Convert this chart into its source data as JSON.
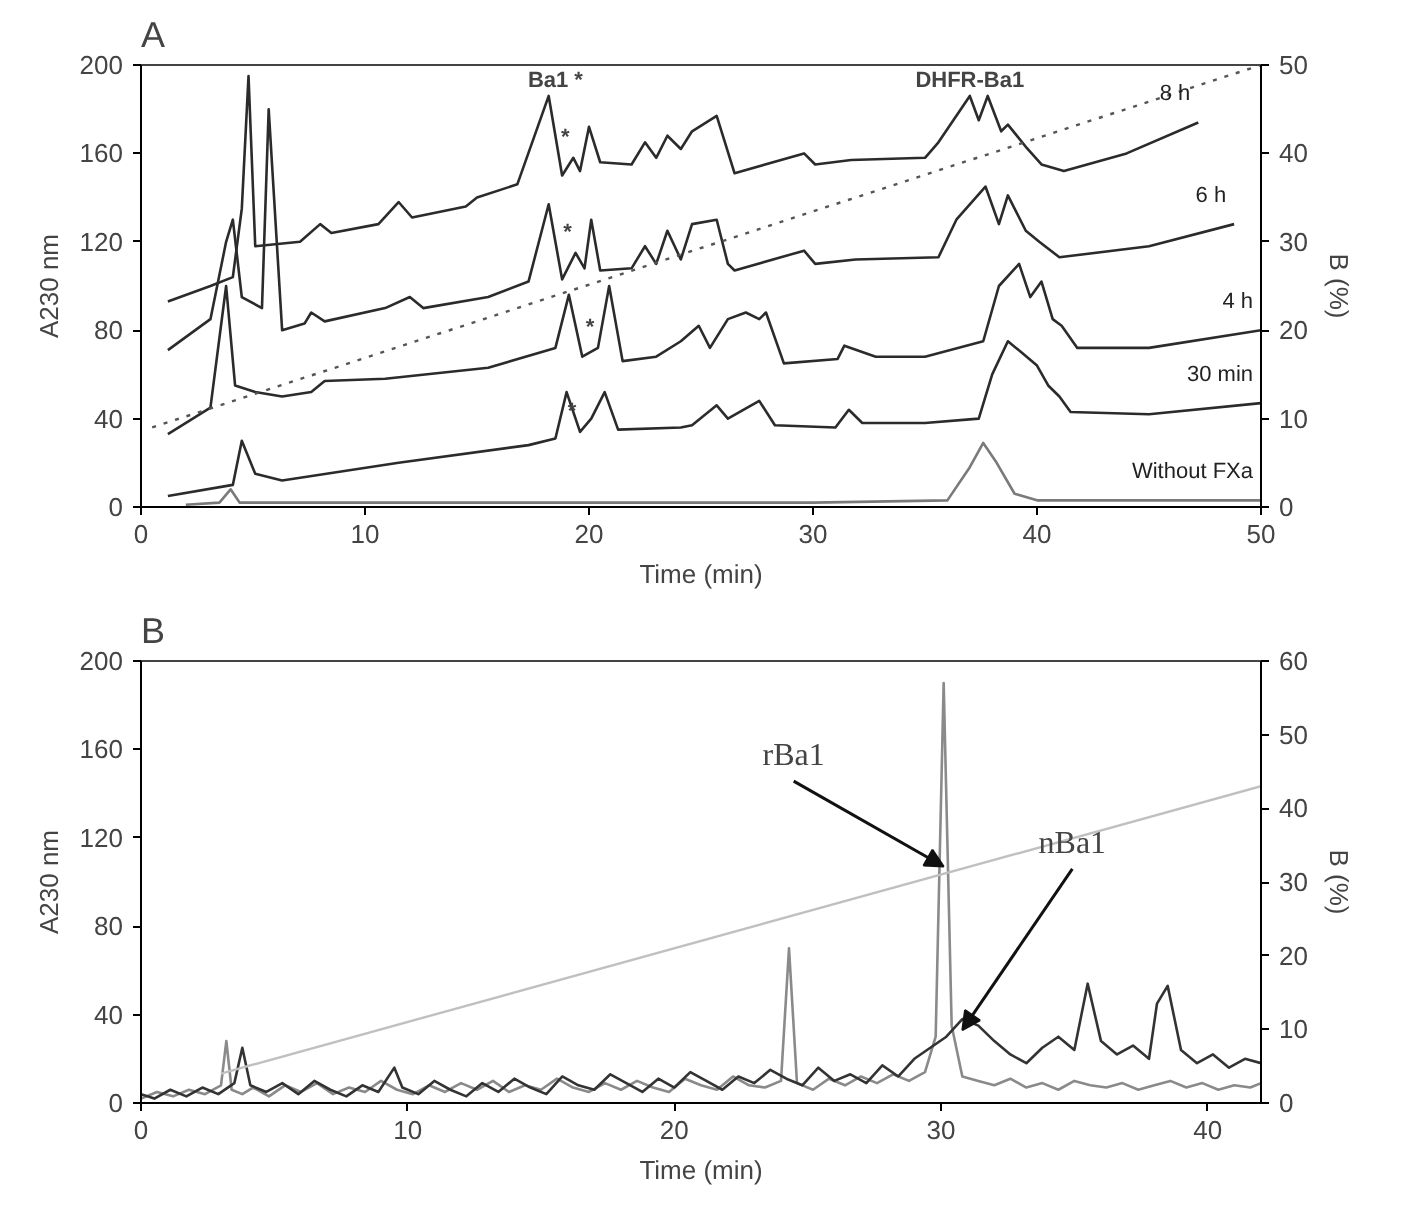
{
  "chart_data": [
    {
      "type": "line",
      "title": "A",
      "xlabel": "Time (min)",
      "ylabel": "A230 nm",
      "y2label": "B (%)",
      "xlim": [
        0,
        50
      ],
      "xticks": [
        0,
        10,
        20,
        30,
        40,
        50
      ],
      "ylim": [
        0,
        200
      ],
      "yticks": [
        0,
        40,
        80,
        120,
        160,
        200
      ],
      "y2lim": [
        0,
        50
      ],
      "y2ticks": [
        0,
        10,
        20,
        30,
        40,
        50
      ],
      "grid": false,
      "legend": false,
      "series": [
        {
          "name": "8 h",
          "color": "#2b2b2b",
          "x": [
            1.2,
            3.1,
            4.1,
            4.5,
            4.8,
            5.1,
            7.1,
            8.0,
            8.5,
            10.6,
            11.5,
            12.1,
            14.5,
            15.0,
            16.8,
            18.2,
            18.8,
            19.3,
            19.6,
            20.0,
            20.5,
            21.9,
            22.5,
            23.0,
            23.5,
            24.1,
            24.6,
            25.7,
            26.5,
            29.6,
            30.1,
            31.7,
            35.0,
            35.6,
            37.0,
            37.4,
            37.8,
            38.4,
            38.7,
            39.5,
            40.2,
            41.2,
            44.0,
            47.2
          ],
          "values": [
            93,
            100,
            104,
            135,
            195,
            118,
            120,
            128,
            124,
            128,
            138,
            131,
            136,
            140,
            146,
            186,
            150,
            158,
            152,
            172,
            156,
            155,
            165,
            158,
            168,
            162,
            170,
            177,
            151,
            160,
            155,
            157,
            158,
            165,
            186,
            175,
            186,
            170,
            173,
            163,
            155,
            152,
            160,
            174
          ]
        },
        {
          "name": "6 h",
          "color": "#2b2b2b",
          "x": [
            1.2,
            3.1,
            3.8,
            4.1,
            4.5,
            5.4,
            5.7,
            6.3,
            7.3,
            7.6,
            8.2,
            10.9,
            12.0,
            12.6,
            15.5,
            17.3,
            18.2,
            18.8,
            19.4,
            19.8,
            20.1,
            20.5,
            21.9,
            22.5,
            23.0,
            23.5,
            24.1,
            24.6,
            25.7,
            26.2,
            26.5,
            29.6,
            30.1,
            31.9,
            35.6,
            36.4,
            37.7,
            38.3,
            38.7,
            39.5,
            40.1,
            41.0,
            45.0,
            48.8
          ],
          "values": [
            71,
            85,
            120,
            130,
            95,
            90,
            180,
            80,
            83,
            88,
            84,
            90,
            95,
            90,
            95,
            102,
            137,
            103,
            115,
            108,
            130,
            107,
            108,
            118,
            110,
            125,
            112,
            128,
            130,
            110,
            107,
            116,
            110,
            112,
            113,
            130,
            145,
            128,
            141,
            125,
            120,
            113,
            118,
            128
          ]
        },
        {
          "name": "4 h",
          "color": "#2b2b2b",
          "x": [
            1.2,
            3.1,
            3.8,
            4.2,
            5.1,
            6.3,
            7.6,
            8.2,
            10.9,
            15.5,
            18.5,
            19.1,
            19.7,
            20.4,
            20.9,
            21.5,
            23.0,
            24.1,
            24.9,
            25.4,
            26.2,
            27.0,
            27.6,
            27.9,
            28.7,
            31.1,
            31.4,
            32.8,
            35.0,
            37.6,
            38.3,
            39.2,
            39.7,
            40.2,
            40.7,
            41.1,
            41.8,
            45.0,
            50.0
          ],
          "values": [
            33,
            45,
            100,
            55,
            52,
            50,
            52,
            57,
            58,
            63,
            72,
            96,
            68,
            72,
            100,
            66,
            68,
            75,
            82,
            72,
            85,
            88,
            85,
            88,
            65,
            67,
            73,
            68,
            68,
            75,
            100,
            110,
            95,
            102,
            85,
            82,
            72,
            72,
            80
          ]
        },
        {
          "name": "30 min",
          "color": "#2b2b2b",
          "x": [
            1.2,
            4.1,
            4.5,
            5.1,
            6.3,
            11.5,
            17.3,
            18.5,
            19.0,
            19.6,
            20.1,
            20.7,
            21.3,
            24.1,
            24.6,
            25.7,
            26.2,
            27.6,
            28.3,
            31.0,
            31.6,
            32.2,
            35.0,
            37.4,
            38.0,
            38.7,
            39.3,
            40.0,
            40.5,
            41.0,
            41.5,
            45.0,
            50.0
          ],
          "values": [
            5,
            10,
            30,
            15,
            12,
            20,
            28,
            31,
            52,
            34,
            40,
            52,
            35,
            36,
            37,
            46,
            40,
            48,
            37,
            36,
            44,
            38,
            38,
            40,
            60,
            75,
            70,
            64,
            55,
            50,
            43,
            42,
            47
          ]
        },
        {
          "name": "Without FXa",
          "color": "#7a7a7a",
          "x": [
            2.0,
            3.5,
            4.0,
            4.4,
            10.0,
            30.0,
            36.0,
            37.0,
            37.6,
            38.2,
            39.0,
            40.0,
            50.0
          ],
          "values": [
            1,
            2,
            8,
            2,
            2,
            2,
            3,
            18,
            29,
            20,
            6,
            3,
            3
          ]
        },
        {
          "axis": "y2",
          "line_style": "dotted",
          "color": "#555555",
          "x": [
            0.5,
            50
          ],
          "values": [
            9,
            50
          ]
        }
      ],
      "annotations": [
        "Ba1 *",
        "DHFR-Ba1",
        {
          "text": "*",
          "x": 19.3,
          "y": 158
        },
        {
          "text": "*",
          "x": 19.4,
          "y": 115
        },
        {
          "text": "*",
          "x": 20.4,
          "y": 72
        },
        {
          "text": "*",
          "x": 19.6,
          "y": 34
        }
      ]
    },
    {
      "type": "line",
      "title": "B",
      "xlabel": "Time (min)",
      "ylabel": "A230 nm",
      "y2label": "B (%)",
      "xlim": [
        0,
        42
      ],
      "xticks": [
        0,
        10,
        20,
        30,
        40
      ],
      "ylim": [
        0,
        200
      ],
      "yticks": [
        0,
        40,
        80,
        120,
        160,
        200
      ],
      "y2lim": [
        0,
        60
      ],
      "y2ticks": [
        0,
        10,
        20,
        30,
        40,
        50,
        60
      ],
      "grid": false,
      "legend": false,
      "series": [
        {
          "color": "#8a8a8a",
          "x": [
            0,
            0.6,
            1.2,
            1.8,
            2.4,
            3.0,
            3.2,
            3.4,
            3.8,
            4.2,
            4.8,
            5.4,
            6.0,
            6.6,
            7.2,
            7.8,
            8.4,
            9.0,
            9.6,
            10.2,
            10.8,
            11.4,
            12,
            12.6,
            13.2,
            13.8,
            14.4,
            15,
            15.6,
            16.2,
            16.8,
            17.4,
            18,
            18.6,
            19.2,
            19.8,
            20.4,
            21,
            21.6,
            22.2,
            22.8,
            23.4,
            24,
            24.3,
            24.6,
            25.2,
            25.8,
            26.4,
            27,
            27.6,
            28.2,
            28.8,
            29.4,
            29.8,
            30.1,
            30.4,
            30.8,
            31.4,
            32,
            32.6,
            33.2,
            33.8,
            34.4,
            35,
            35.6,
            36.2,
            36.8,
            37.4,
            38,
            38.6,
            39.2,
            39.8,
            40.4,
            41,
            41.6,
            42
          ],
          "values": [
            2,
            5,
            3,
            6,
            4,
            8,
            28,
            6,
            4,
            7,
            3,
            8,
            5,
            9,
            4,
            7,
            5,
            10,
            6,
            4,
            8,
            5,
            9,
            6,
            10,
            5,
            8,
            6,
            11,
            7,
            5,
            9,
            6,
            10,
            7,
            5,
            11,
            8,
            6,
            12,
            8,
            7,
            10,
            70,
            9,
            6,
            11,
            8,
            12,
            9,
            13,
            10,
            14,
            30,
            190,
            35,
            12,
            10,
            8,
            11,
            7,
            9,
            6,
            10,
            8,
            7,
            9,
            6,
            8,
            10,
            7,
            9,
            6,
            8,
            7,
            9
          ]
        },
        {
          "color": "#333333",
          "x": [
            0,
            0.5,
            1.1,
            1.7,
            2.3,
            2.9,
            3.5,
            3.8,
            4.1,
            4.7,
            5.3,
            5.9,
            6.5,
            7.1,
            7.7,
            8.3,
            8.9,
            9.5,
            9.8,
            10.4,
            11,
            11.6,
            12.2,
            12.8,
            13.4,
            14,
            14.6,
            15.2,
            15.8,
            16.4,
            17,
            17.6,
            18.2,
            18.8,
            19.4,
            20,
            20.6,
            21.2,
            21.8,
            22.4,
            23,
            23.6,
            24.2,
            24.8,
            25.4,
            26,
            26.6,
            27.2,
            27.8,
            28.4,
            29,
            29.6,
            30.2,
            30.8,
            31.4,
            32,
            32.6,
            33.2,
            33.8,
            34.4,
            35,
            35.5,
            36,
            36.6,
            37.2,
            37.8,
            38.1,
            38.5,
            39,
            39.6,
            40.2,
            40.8,
            41.4,
            42
          ],
          "values": [
            4,
            2,
            6,
            3,
            7,
            4,
            9,
            25,
            8,
            5,
            9,
            4,
            10,
            6,
            3,
            8,
            5,
            16,
            7,
            4,
            10,
            6,
            3,
            9,
            5,
            11,
            7,
            4,
            12,
            8,
            6,
            13,
            9,
            5,
            11,
            7,
            14,
            10,
            6,
            12,
            9,
            15,
            11,
            8,
            16,
            10,
            13,
            9,
            17,
            12,
            20,
            25,
            30,
            38,
            35,
            28,
            22,
            18,
            25,
            30,
            24,
            54,
            28,
            22,
            26,
            20,
            45,
            53,
            24,
            18,
            22,
            16,
            20,
            18
          ]
        },
        {
          "axis": "y2",
          "line_style": "solid",
          "color": "#c0c0c0",
          "x": [
            3,
            42
          ],
          "values": [
            4,
            43
          ]
        }
      ],
      "annotations": [
        {
          "text": "rBa1",
          "x": 30.1,
          "y": 107
        },
        {
          "text": "nBa1",
          "x": 30.8,
          "y": 33
        }
      ]
    }
  ]
}
